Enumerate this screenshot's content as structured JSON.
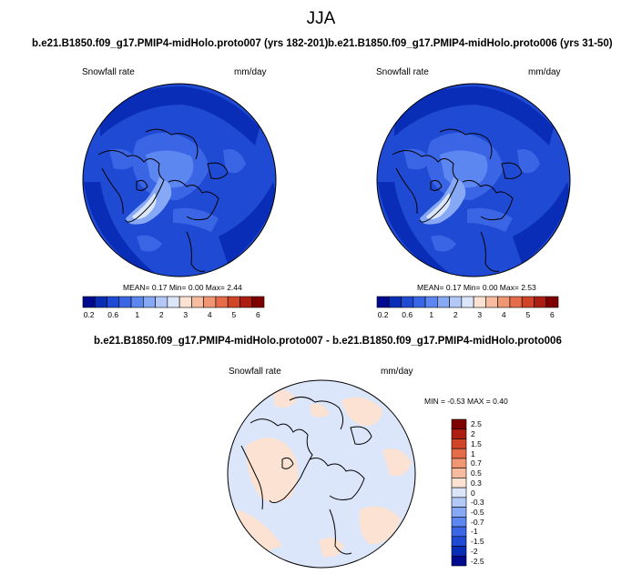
{
  "figure": {
    "title": "JJA",
    "colors": {
      "seq": [
        "#000a8f",
        "#0a2db8",
        "#1f4ad4",
        "#3a66e6",
        "#5c86f0",
        "#86a8f5",
        "#b4c8f8",
        "#dce6fa",
        "#fbe2d2",
        "#f7bca0",
        "#f19672",
        "#e66b48",
        "#d04528",
        "#ac1d12",
        "#7f0000"
      ],
      "diff": [
        "#000a8f",
        "#0a2db8",
        "#1f4ad4",
        "#3a66e6",
        "#5c86f0",
        "#86a8f5",
        "#b4c8f8",
        "#dce6fa",
        "#fbe2d2",
        "#f7bca0",
        "#f19672",
        "#e66b48",
        "#d04528",
        "#ac1d12",
        "#7f0000"
      ]
    }
  },
  "panels": [
    {
      "title": "b.e21.B1850.f09_g17.PMIP4-midHolo.proto007 (yrs 182-201)",
      "variable": "Snowfall rate",
      "units": "mm/day",
      "stats": {
        "mean_label": "MEAN=",
        "mean": "0.17",
        "min_label": "Min=",
        "min": "0.00",
        "max_label": "Max=",
        "max": "2.44"
      },
      "colorbar_ticks": [
        "0.2",
        "0.6",
        "1",
        "2",
        "3",
        "4",
        "5",
        "6"
      ]
    },
    {
      "title": "b.e21.B1850.f09_g17.PMIP4-midHolo.proto006 (yrs 31-50)",
      "variable": "Snowfall rate",
      "units": "mm/day",
      "stats": {
        "mean_label": "MEAN=",
        "mean": "0.17",
        "min_label": "Min=",
        "min": "0.00",
        "max_label": "Max=",
        "max": "2.53"
      },
      "colorbar_ticks": [
        "0.2",
        "0.6",
        "1",
        "2",
        "3",
        "4",
        "5",
        "6"
      ]
    }
  ],
  "diff_panel": {
    "title": "b.e21.B1850.f09_g17.PMIP4-midHolo.proto007 - b.e21.B1850.f09_g17.PMIP4-midHolo.proto006",
    "variable": "Snowfall rate",
    "units": "mm/day",
    "stats": {
      "min_label": "MIN =",
      "min": "-0.53",
      "max_label": "MAX =",
      "max": "0.40"
    },
    "colorbar_labels": [
      "2.5",
      "2",
      "1.5",
      "1",
      "0.7",
      "0.5",
      "0.3",
      "0",
      "-0.3",
      "-0.5",
      "-0.7",
      "-1",
      "-1.5",
      "-2",
      "-2.5"
    ]
  },
  "chart_data": [
    {
      "type": "heatmap",
      "title": "b.e21.B1850.f09_g17.PMIP4-midHolo.proto007 (yrs 182-201)",
      "projection": "north polar stereographic",
      "variable": "Snowfall rate",
      "units": "mm/day",
      "mean": 0.17,
      "min": 0.0,
      "max": 2.44,
      "levels": [
        0.2,
        0.4,
        0.6,
        0.8,
        1,
        1.5,
        2,
        2.5,
        3,
        3.5,
        4,
        4.5,
        5,
        5.5,
        6
      ]
    },
    {
      "type": "heatmap",
      "title": "b.e21.B1850.f09_g17.PMIP4-midHolo.proto006 (yrs 31-50)",
      "projection": "north polar stereographic",
      "variable": "Snowfall rate",
      "units": "mm/day",
      "mean": 0.17,
      "min": 0.0,
      "max": 2.53,
      "levels": [
        0.2,
        0.4,
        0.6,
        0.8,
        1,
        1.5,
        2,
        2.5,
        3,
        3.5,
        4,
        4.5,
        5,
        5.5,
        6
      ]
    },
    {
      "type": "heatmap",
      "title": "b.e21.B1850.f09_g17.PMIP4-midHolo.proto007 - b.e21.B1850.f09_g17.PMIP4-midHolo.proto006",
      "projection": "north polar stereographic",
      "variable": "Snowfall rate",
      "units": "mm/day",
      "min": -0.53,
      "max": 0.4,
      "levels": [
        -2.5,
        -2,
        -1.5,
        -1,
        -0.7,
        -0.5,
        -0.3,
        0,
        0.3,
        0.5,
        0.7,
        1,
        1.5,
        2,
        2.5
      ]
    }
  ]
}
